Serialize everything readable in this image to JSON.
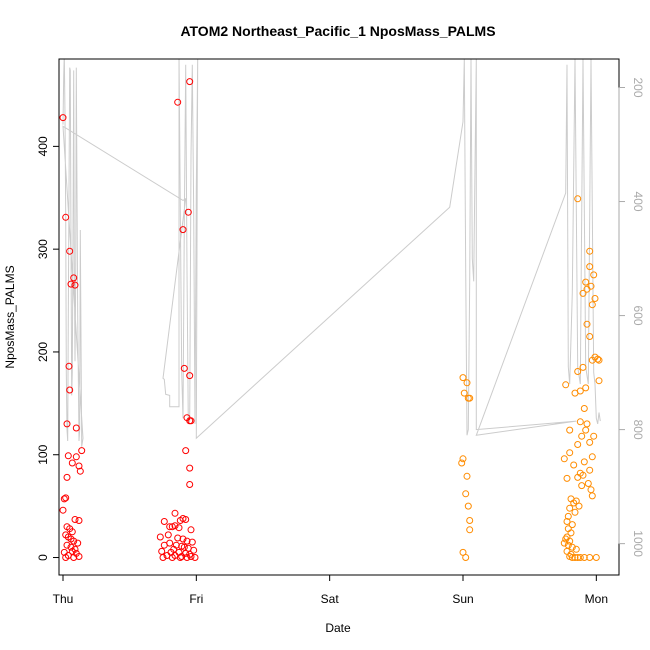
{
  "chart_data": {
    "type": "scatter",
    "title": "ATOM2 Northeast_Pacific_1 NposMass_PALMS",
    "xlabel": "Date",
    "ylabel": "NposMass_PALMS",
    "x_ticks": [
      "Thu",
      "Fri",
      "Sat",
      "Sun",
      "Mon"
    ],
    "xlim": [
      -0.03,
      4.17
    ],
    "ylim": [
      -17,
      485
    ],
    "y_ticks": [
      0,
      100,
      200,
      300,
      400
    ],
    "y2_ticks": [
      200,
      400,
      600,
      800,
      1000
    ],
    "y2lim": [
      1055,
      150
    ],
    "colors": {
      "early": "#ff0000",
      "late": "#ff8c00",
      "altitude": "#cccccc",
      "axis": "#000000",
      "axis_right": "#aaaaaa"
    },
    "series": [
      {
        "color_key": "early",
        "points": [
          [
            0.0,
            428
          ],
          [
            0.02,
            331
          ],
          [
            0.05,
            298
          ],
          [
            0.06,
            266
          ],
          [
            0.08,
            272
          ],
          [
            0.09,
            265
          ],
          [
            0.045,
            186
          ],
          [
            0.05,
            163
          ],
          [
            0.03,
            130
          ],
          [
            0.1,
            126
          ],
          [
            0.04,
            99
          ],
          [
            0.1,
            98
          ],
          [
            0.14,
            104
          ],
          [
            0.12,
            89
          ],
          [
            0.13,
            84
          ],
          [
            0.07,
            92
          ],
          [
            0.03,
            78
          ],
          [
            0.01,
            57
          ],
          [
            0.02,
            58
          ],
          [
            0.0,
            46
          ],
          [
            0.09,
            37
          ],
          [
            0.12,
            36
          ],
          [
            0.03,
            30
          ],
          [
            0.05,
            28
          ],
          [
            0.07,
            25
          ],
          [
            0.02,
            22
          ],
          [
            0.04,
            20
          ],
          [
            0.06,
            18
          ],
          [
            0.08,
            16
          ],
          [
            0.11,
            14
          ],
          [
            0.03,
            12
          ],
          [
            0.06,
            10
          ],
          [
            0.09,
            8
          ],
          [
            0.07,
            6
          ],
          [
            0.01,
            5
          ],
          [
            0.1,
            4
          ],
          [
            0.04,
            2
          ],
          [
            0.12,
            1
          ],
          [
            0.02,
            0
          ],
          [
            0.08,
            0
          ],
          [
            0.86,
            443
          ],
          [
            0.95,
            463
          ],
          [
            0.94,
            336
          ],
          [
            0.9,
            319
          ],
          [
            0.91,
            184
          ],
          [
            0.95,
            177
          ],
          [
            0.93,
            136
          ],
          [
            0.95,
            133
          ],
          [
            0.96,
            133
          ],
          [
            0.92,
            104
          ],
          [
            0.95,
            87
          ],
          [
            0.95,
            71
          ],
          [
            0.84,
            43
          ],
          [
            0.76,
            35
          ],
          [
            0.9,
            38
          ],
          [
            0.92,
            37
          ],
          [
            0.88,
            36
          ],
          [
            0.84,
            31
          ],
          [
            0.8,
            30
          ],
          [
            0.82,
            30
          ],
          [
            0.87,
            29
          ],
          [
            0.96,
            27
          ],
          [
            0.79,
            22
          ],
          [
            0.73,
            20
          ],
          [
            0.86,
            19
          ],
          [
            0.9,
            18
          ],
          [
            0.93,
            16
          ],
          [
            0.97,
            15
          ],
          [
            0.8,
            14
          ],
          [
            0.76,
            12
          ],
          [
            0.85,
            12
          ],
          [
            0.89,
            11
          ],
          [
            0.91,
            10
          ],
          [
            0.94,
            9
          ],
          [
            0.83,
            8
          ],
          [
            0.98,
            7
          ],
          [
            0.74,
            6
          ],
          [
            0.81,
            5
          ],
          [
            0.87,
            5
          ],
          [
            0.92,
            4
          ],
          [
            0.95,
            3
          ],
          [
            0.78,
            2
          ],
          [
            0.84,
            2
          ],
          [
            0.89,
            1
          ],
          [
            0.96,
            1
          ],
          [
            0.75,
            0
          ],
          [
            0.82,
            0
          ],
          [
            0.88,
            0
          ],
          [
            0.93,
            0
          ],
          [
            0.99,
            0
          ]
        ]
      },
      {
        "color_key": "late",
        "points": [
          [
            3.0,
            175
          ],
          [
            3.01,
            160
          ],
          [
            3.03,
            170
          ],
          [
            3.04,
            155
          ],
          [
            3.05,
            155
          ],
          [
            3.0,
            96
          ],
          [
            2.99,
            92
          ],
          [
            3.03,
            79
          ],
          [
            3.02,
            62
          ],
          [
            3.04,
            50
          ],
          [
            3.05,
            36
          ],
          [
            3.05,
            27
          ],
          [
            3.0,
            5
          ],
          [
            3.02,
            0
          ],
          [
            3.77,
            168
          ],
          [
            3.8,
            124
          ],
          [
            3.86,
            349
          ],
          [
            3.95,
            298
          ],
          [
            3.95,
            283
          ],
          [
            3.98,
            275
          ],
          [
            3.92,
            268
          ],
          [
            3.96,
            264
          ],
          [
            3.93,
            261
          ],
          [
            3.9,
            257
          ],
          [
            3.99,
            252
          ],
          [
            3.97,
            246
          ],
          [
            3.93,
            227
          ],
          [
            3.95,
            215
          ],
          [
            3.99,
            195
          ],
          [
            4.01,
            193
          ],
          [
            4.02,
            192
          ],
          [
            3.97,
            192
          ],
          [
            3.9,
            185
          ],
          [
            3.86,
            181
          ],
          [
            4.02,
            172
          ],
          [
            3.92,
            165
          ],
          [
            3.88,
            162
          ],
          [
            3.84,
            160
          ],
          [
            3.91,
            145
          ],
          [
            3.88,
            132
          ],
          [
            3.93,
            130
          ],
          [
            3.92,
            124
          ],
          [
            3.89,
            118
          ],
          [
            3.95,
            112
          ],
          [
            3.86,
            110
          ],
          [
            3.98,
            118
          ],
          [
            3.8,
            102
          ],
          [
            3.97,
            98
          ],
          [
            3.76,
            96
          ],
          [
            3.91,
            93
          ],
          [
            3.83,
            90
          ],
          [
            3.95,
            85
          ],
          [
            3.88,
            82
          ],
          [
            3.9,
            80
          ],
          [
            3.86,
            78
          ],
          [
            3.78,
            77
          ],
          [
            3.94,
            72
          ],
          [
            3.89,
            70
          ],
          [
            3.96,
            66
          ],
          [
            3.97,
            60
          ],
          [
            3.81,
            57
          ],
          [
            3.85,
            55
          ],
          [
            3.83,
            53
          ],
          [
            3.87,
            50
          ],
          [
            3.8,
            48
          ],
          [
            3.84,
            44
          ],
          [
            3.79,
            40
          ],
          [
            3.78,
            35
          ],
          [
            3.82,
            32
          ],
          [
            3.79,
            28
          ],
          [
            3.81,
            24
          ],
          [
            3.78,
            20
          ],
          [
            3.77,
            18
          ],
          [
            3.8,
            16
          ],
          [
            3.76,
            14
          ],
          [
            3.79,
            12
          ],
          [
            3.82,
            10
          ],
          [
            3.85,
            8
          ],
          [
            3.78,
            6
          ],
          [
            3.81,
            3
          ],
          [
            3.8,
            1
          ],
          [
            3.82,
            0
          ],
          [
            3.84,
            0
          ],
          [
            3.86,
            0
          ],
          [
            3.88,
            0
          ],
          [
            3.91,
            0
          ],
          [
            3.95,
            0
          ],
          [
            4.0,
            0
          ]
        ]
      }
    ],
    "altitude_line": [
      [
        0.0,
        265
      ],
      [
        0.005,
        180
      ],
      [
        0.01,
        140
      ],
      [
        0.015,
        250
      ],
      [
        0.02,
        420
      ],
      [
        0.025,
        700
      ],
      [
        0.03,
        800
      ],
      [
        0.035,
        820
      ],
      [
        0.04,
        600
      ],
      [
        0.045,
        380
      ],
      [
        0.05,
        165
      ],
      [
        0.055,
        170
      ],
      [
        0.06,
        480
      ],
      [
        0.065,
        740
      ],
      [
        0.07,
        700
      ],
      [
        0.075,
        460
      ],
      [
        0.08,
        170
      ],
      [
        0.085,
        500
      ],
      [
        0.09,
        680
      ],
      [
        0.095,
        540
      ],
      [
        0.1,
        165
      ],
      [
        0.11,
        600
      ],
      [
        0.12,
        820
      ],
      [
        0.125,
        800
      ],
      [
        0.13,
        450
      ],
      [
        0.14,
        830
      ],
      [
        0.15,
        815
      ],
      [
        0.0,
        268
      ],
      [
        0.9,
        398
      ],
      [
        0.92,
        395
      ],
      [
        0.75,
        710
      ],
      [
        0.76,
        712
      ],
      [
        0.77,
        738
      ],
      [
        0.8,
        740
      ],
      [
        0.8,
        760
      ],
      [
        0.87,
        760
      ],
      [
        0.87,
        140
      ],
      [
        0.89,
        700
      ],
      [
        0.9,
        780
      ],
      [
        0.91,
        440
      ],
      [
        0.92,
        160
      ],
      [
        0.93,
        520
      ],
      [
        0.94,
        790
      ],
      [
        0.95,
        785
      ],
      [
        0.96,
        320
      ],
      [
        0.97,
        160
      ],
      [
        0.98,
        420
      ],
      [
        0.99,
        790
      ],
      [
        1.0,
        380
      ],
      [
        1.01,
        150
      ],
      [
        1.0,
        815
      ],
      [
        2.9,
        410
      ],
      [
        3.0,
        260
      ],
      [
        3.01,
        150
      ],
      [
        3.02,
        520
      ],
      [
        3.03,
        810
      ],
      [
        3.04,
        800
      ],
      [
        3.05,
        540
      ],
      [
        3.06,
        150
      ],
      [
        3.07,
        500
      ],
      [
        3.08,
        540
      ],
      [
        3.09,
        340
      ],
      [
        3.1,
        150
      ],
      [
        3.1,
        800
      ],
      [
        3.85,
        785
      ],
      [
        3.1,
        810
      ],
      [
        3.77,
        385
      ],
      [
        3.78,
        160
      ],
      [
        3.79,
        690
      ],
      [
        3.8,
        720
      ],
      [
        3.82,
        560
      ],
      [
        3.84,
        150
      ],
      [
        3.86,
        690
      ],
      [
        3.88,
        720
      ],
      [
        3.9,
        150
      ],
      [
        3.92,
        690
      ],
      [
        3.94,
        720
      ],
      [
        3.96,
        150
      ],
      [
        3.98,
        700
      ],
      [
        3.99,
        720
      ],
      [
        4.0,
        780
      ],
      [
        4.01,
        790
      ],
      [
        4.02,
        770
      ],
      [
        4.03,
        785
      ]
    ]
  }
}
